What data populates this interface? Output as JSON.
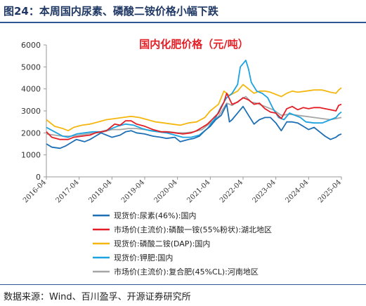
{
  "figure": {
    "title": "图24：本周国内尿素、磷酸二铵价格小幅下跌",
    "source": "数据来源：Wind、百川盈孚、开源证券研究所"
  },
  "chart_data": {
    "type": "line",
    "title": "国内化肥价格（元/吨）",
    "title_color": "#e31e24",
    "xlabel": "",
    "ylabel": "",
    "x_ticks": [
      "2016-04",
      "2017-04",
      "2018-04",
      "2019-04",
      "2020-04",
      "2021-04",
      "2022-04",
      "2023-04",
      "2024-04",
      "2025-04"
    ],
    "x_range": [
      "2016-04",
      "2025-04"
    ],
    "ylim": [
      0,
      6000
    ],
    "y_ticks": [
      0,
      1000,
      2000,
      3000,
      4000,
      5000,
      6000
    ],
    "grid": false,
    "legend_position": "bottom",
    "series": [
      {
        "name": "现货价:尿素(46%):国内",
        "color": "#1f6fb4",
        "points": [
          [
            "2016-04",
            1500
          ],
          [
            "2016-06",
            1350
          ],
          [
            "2016-09",
            1300
          ],
          [
            "2016-11",
            1400
          ],
          [
            "2017-01",
            1550
          ],
          [
            "2017-03",
            1700
          ],
          [
            "2017-06",
            1600
          ],
          [
            "2017-08",
            1700
          ],
          [
            "2017-10",
            1850
          ],
          [
            "2017-12",
            2000
          ],
          [
            "2018-01",
            1950
          ],
          [
            "2018-04",
            1800
          ],
          [
            "2018-07",
            1900
          ],
          [
            "2018-09",
            2050
          ],
          [
            "2018-11",
            2100
          ],
          [
            "2019-01",
            2000
          ],
          [
            "2019-04",
            1950
          ],
          [
            "2019-07",
            1850
          ],
          [
            "2019-10",
            1800
          ],
          [
            "2019-12",
            1750
          ],
          [
            "2020-03",
            1800
          ],
          [
            "2020-05",
            1600
          ],
          [
            "2020-08",
            1700
          ],
          [
            "2020-10",
            1750
          ],
          [
            "2020-12",
            1850
          ],
          [
            "2021-02",
            2100
          ],
          [
            "2021-04",
            2300
          ],
          [
            "2021-06",
            2600
          ],
          [
            "2021-08",
            2800
          ],
          [
            "2021-10",
            3300
          ],
          [
            "2021-11",
            2500
          ],
          [
            "2021-12",
            2600
          ],
          [
            "2022-02",
            2900
          ],
          [
            "2022-04",
            3200
          ],
          [
            "2022-06",
            2800
          ],
          [
            "2022-08",
            2400
          ],
          [
            "2022-10",
            2600
          ],
          [
            "2022-12",
            2700
          ],
          [
            "2023-02",
            2700
          ],
          [
            "2023-04",
            2450
          ],
          [
            "2023-06",
            2100
          ],
          [
            "2023-08",
            2500
          ],
          [
            "2023-10",
            2500
          ],
          [
            "2023-12",
            2450
          ],
          [
            "2024-02",
            2300
          ],
          [
            "2024-04",
            2150
          ],
          [
            "2024-06",
            2250
          ],
          [
            "2024-08",
            2050
          ],
          [
            "2024-10",
            1850
          ],
          [
            "2024-12",
            1700
          ],
          [
            "2025-02",
            1800
          ],
          [
            "2025-03",
            1900
          ],
          [
            "2025-04",
            1950
          ]
        ]
      },
      {
        "name": "市场价(主流价):磷酸一铵(55%粉状):湖北地区",
        "color": "#e31e24",
        "points": [
          [
            "2016-04",
            2050
          ],
          [
            "2016-06",
            1800
          ],
          [
            "2016-09",
            1700
          ],
          [
            "2016-12",
            1700
          ],
          [
            "2017-02",
            1800
          ],
          [
            "2017-05",
            1850
          ],
          [
            "2017-08",
            1900
          ],
          [
            "2017-10",
            2000
          ],
          [
            "2017-12",
            2050
          ],
          [
            "2018-02",
            2100
          ],
          [
            "2018-05",
            2400
          ],
          [
            "2018-07",
            2350
          ],
          [
            "2018-09",
            2550
          ],
          [
            "2018-11",
            2550
          ],
          [
            "2019-01",
            2400
          ],
          [
            "2019-04",
            2300
          ],
          [
            "2019-07",
            2150
          ],
          [
            "2019-10",
            2050
          ],
          [
            "2019-12",
            2050
          ],
          [
            "2020-03",
            2000
          ],
          [
            "2020-06",
            1950
          ],
          [
            "2020-09",
            2000
          ],
          [
            "2020-11",
            2100
          ],
          [
            "2021-01",
            2250
          ],
          [
            "2021-03",
            2400
          ],
          [
            "2021-05",
            2650
          ],
          [
            "2021-07",
            2900
          ],
          [
            "2021-09",
            3400
          ],
          [
            "2021-10",
            3800
          ],
          [
            "2021-12",
            3300
          ],
          [
            "2022-02",
            3400
          ],
          [
            "2022-04",
            3600
          ],
          [
            "2022-06",
            3500
          ],
          [
            "2022-08",
            3300
          ],
          [
            "2022-10",
            3350
          ],
          [
            "2022-12",
            3100
          ],
          [
            "2023-02",
            2950
          ],
          [
            "2023-04",
            2900
          ],
          [
            "2023-06",
            2650
          ],
          [
            "2023-08",
            3100
          ],
          [
            "2023-10",
            3200
          ],
          [
            "2023-12",
            3050
          ],
          [
            "2024-02",
            3150
          ],
          [
            "2024-04",
            3100
          ],
          [
            "2024-06",
            3150
          ],
          [
            "2024-08",
            3150
          ],
          [
            "2024-10",
            3100
          ],
          [
            "2024-12",
            3050
          ],
          [
            "2025-02",
            3000
          ],
          [
            "2025-03",
            3250
          ],
          [
            "2025-04",
            3300
          ]
        ]
      },
      {
        "name": "现货价:磷酸二铵(DAP):国内",
        "color": "#f5b70f",
        "points": [
          [
            "2016-04",
            2600
          ],
          [
            "2016-07",
            2300
          ],
          [
            "2016-10",
            2200
          ],
          [
            "2016-12",
            2100
          ],
          [
            "2017-02",
            2250
          ],
          [
            "2017-05",
            2350
          ],
          [
            "2017-08",
            2400
          ],
          [
            "2017-11",
            2500
          ],
          [
            "2018-02",
            2600
          ],
          [
            "2018-05",
            2650
          ],
          [
            "2018-08",
            2700
          ],
          [
            "2018-11",
            2750
          ],
          [
            "2019-02",
            2700
          ],
          [
            "2019-05",
            2600
          ],
          [
            "2019-08",
            2500
          ],
          [
            "2019-11",
            2450
          ],
          [
            "2020-02",
            2400
          ],
          [
            "2020-05",
            2350
          ],
          [
            "2020-08",
            2450
          ],
          [
            "2020-11",
            2500
          ],
          [
            "2021-02",
            2700
          ],
          [
            "2021-04",
            3000
          ],
          [
            "2021-07",
            3300
          ],
          [
            "2021-09",
            3900
          ],
          [
            "2021-11",
            3700
          ],
          [
            "2022-02",
            3900
          ],
          [
            "2022-04",
            4200
          ],
          [
            "2022-06",
            4000
          ],
          [
            "2022-08",
            3800
          ],
          [
            "2022-10",
            3900
          ],
          [
            "2022-12",
            3900
          ],
          [
            "2023-02",
            3850
          ],
          [
            "2023-04",
            3750
          ],
          [
            "2023-06",
            3650
          ],
          [
            "2023-08",
            3800
          ],
          [
            "2023-10",
            3900
          ],
          [
            "2023-12",
            3850
          ],
          [
            "2024-03",
            3900
          ],
          [
            "2024-06",
            3950
          ],
          [
            "2024-09",
            3950
          ],
          [
            "2024-12",
            3850
          ],
          [
            "2025-02",
            3800
          ],
          [
            "2025-03",
            3950
          ],
          [
            "2025-04",
            4050
          ]
        ]
      },
      {
        "name": "现货价:钾肥:国内",
        "color": "#1aa3e0",
        "points": [
          [
            "2016-04",
            2250
          ],
          [
            "2016-07",
            2050
          ],
          [
            "2016-10",
            1850
          ],
          [
            "2016-12",
            1800
          ],
          [
            "2017-03",
            1950
          ],
          [
            "2017-06",
            2000
          ],
          [
            "2017-09",
            2050
          ],
          [
            "2017-12",
            2050
          ],
          [
            "2018-03",
            2150
          ],
          [
            "2018-06",
            2300
          ],
          [
            "2018-09",
            2400
          ],
          [
            "2018-12",
            2350
          ],
          [
            "2019-03",
            2200
          ],
          [
            "2019-06",
            2100
          ],
          [
            "2019-09",
            2050
          ],
          [
            "2019-12",
            2000
          ],
          [
            "2020-03",
            1900
          ],
          [
            "2020-06",
            1800
          ],
          [
            "2020-09",
            1800
          ],
          [
            "2020-12",
            1900
          ],
          [
            "2021-03",
            2200
          ],
          [
            "2021-06",
            2700
          ],
          [
            "2021-08",
            3200
          ],
          [
            "2021-10",
            3600
          ],
          [
            "2021-12",
            3800
          ],
          [
            "2022-02",
            4200
          ],
          [
            "2022-03",
            5000
          ],
          [
            "2022-05",
            5300
          ],
          [
            "2022-06",
            4900
          ],
          [
            "2022-07",
            4300
          ],
          [
            "2022-09",
            3900
          ],
          [
            "2022-11",
            3800
          ],
          [
            "2023-01",
            3600
          ],
          [
            "2023-03",
            3100
          ],
          [
            "2023-05",
            2700
          ],
          [
            "2023-07",
            2600
          ],
          [
            "2023-09",
            2900
          ],
          [
            "2023-11",
            2800
          ],
          [
            "2024-01",
            2700
          ],
          [
            "2024-03",
            2500
          ],
          [
            "2024-06",
            2450
          ],
          [
            "2024-09",
            2450
          ],
          [
            "2024-12",
            2600
          ],
          [
            "2025-02",
            2700
          ],
          [
            "2025-03",
            2850
          ],
          [
            "2025-04",
            2950
          ]
        ]
      },
      {
        "name": "市场价(主流价):复合肥(45%CL):河南地区",
        "color": "#a6a6a6",
        "points": [
          [
            "2016-04",
            1950
          ],
          [
            "2016-07",
            1900
          ],
          [
            "2016-10",
            1850
          ],
          [
            "2017-01",
            1850
          ],
          [
            "2017-04",
            1900
          ],
          [
            "2017-07",
            1950
          ],
          [
            "2017-10",
            2000
          ],
          [
            "2018-01",
            2050
          ],
          [
            "2018-04",
            2150
          ],
          [
            "2018-07",
            2150
          ],
          [
            "2018-10",
            2200
          ],
          [
            "2019-01",
            2200
          ],
          [
            "2019-04",
            2150
          ],
          [
            "2019-07",
            2100
          ],
          [
            "2019-10",
            2050
          ],
          [
            "2020-01",
            2050
          ],
          [
            "2020-04",
            2000
          ],
          [
            "2020-07",
            2000
          ],
          [
            "2020-10",
            2050
          ],
          [
            "2021-01",
            2150
          ],
          [
            "2021-04",
            2450
          ],
          [
            "2021-07",
            2750
          ],
          [
            "2021-10",
            3350
          ],
          [
            "2021-12",
            3250
          ],
          [
            "2022-03",
            3500
          ],
          [
            "2022-05",
            3650
          ],
          [
            "2022-07",
            3400
          ],
          [
            "2022-09",
            3350
          ],
          [
            "2022-12",
            3200
          ],
          [
            "2023-03",
            3050
          ],
          [
            "2023-06",
            2800
          ],
          [
            "2023-09",
            2850
          ],
          [
            "2023-12",
            2800
          ],
          [
            "2024-03",
            2750
          ],
          [
            "2024-06",
            2700
          ],
          [
            "2024-09",
            2650
          ],
          [
            "2024-12",
            2600
          ],
          [
            "2025-02",
            2650
          ],
          [
            "2025-04",
            2700
          ]
        ]
      }
    ]
  }
}
